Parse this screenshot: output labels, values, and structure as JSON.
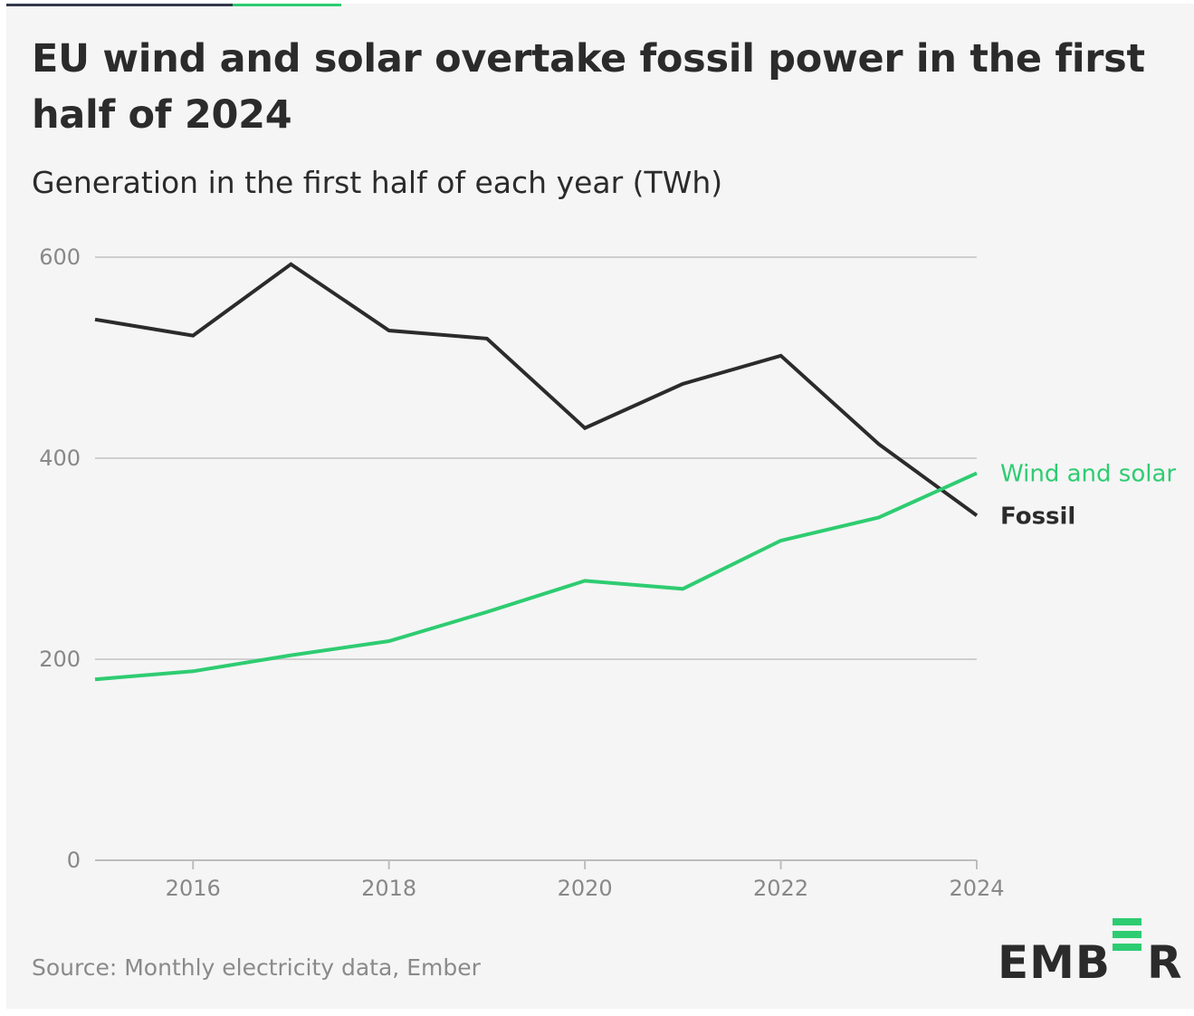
{
  "header": {
    "title": "EU wind and solar overtake fossil power in the first half of 2024",
    "subtitle": "Generation in the first half of each year (TWh)"
  },
  "footer": {
    "source": "Source: Monthly electricity data, Ember",
    "logo_text": "EMBER"
  },
  "colors": {
    "fossil": "#2b2b2b",
    "wind_solar": "#2ecc71",
    "grid": "#cfcfcf",
    "tick_text": "#888888",
    "accent_bar_dark": "#33394a",
    "accent_bar_green": "#2ecc71"
  },
  "chart_data": {
    "type": "line",
    "title": "EU wind and solar overtake fossil power in the first half of 2024",
    "subtitle": "Generation in the first half of each year (TWh)",
    "xlabel": "",
    "ylabel": "TWh",
    "x": [
      2015,
      2016,
      2017,
      2018,
      2019,
      2020,
      2021,
      2022,
      2023,
      2024
    ],
    "xlim": [
      2015,
      2024
    ],
    "ylim": [
      0,
      600
    ],
    "x_ticks": [
      "2016",
      "2018",
      "2020",
      "2022",
      "2024"
    ],
    "y_ticks": [
      "0",
      "200",
      "400",
      "600"
    ],
    "grid": true,
    "legend": "inline-right",
    "series": [
      {
        "name": "Wind and solar",
        "color": "#2ecc71",
        "values": [
          180,
          188,
          204,
          218,
          247,
          278,
          270,
          318,
          341,
          385
        ]
      },
      {
        "name": "Fossil",
        "color": "#2b2b2b",
        "values": [
          538,
          522,
          593,
          527,
          519,
          430,
          474,
          502,
          414,
          343
        ]
      }
    ]
  }
}
